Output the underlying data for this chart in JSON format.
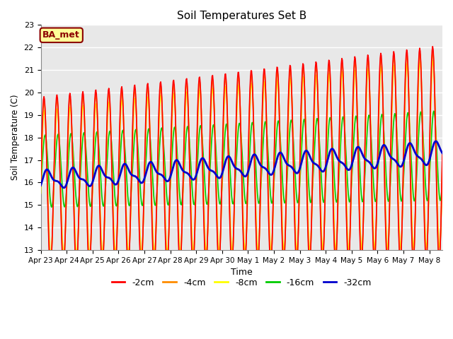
{
  "title": "Soil Temperatures Set B",
  "xlabel": "Time",
  "ylabel": "Soil Temperature (C)",
  "ylim": [
    13.0,
    23.0
  ],
  "yticks": [
    13.0,
    14.0,
    15.0,
    16.0,
    17.0,
    18.0,
    19.0,
    20.0,
    21.0,
    22.0,
    23.0
  ],
  "xtick_labels": [
    "Apr 23",
    "Apr 24",
    "Apr 25",
    "Apr 26",
    "Apr 27",
    "Apr 28",
    "Apr 29",
    "Apr 30",
    "May 1",
    "May 2",
    "May 3",
    "May 4",
    "May 5",
    "May 6",
    "May 7",
    "May 8"
  ],
  "annotation_text": "BA_met",
  "annotation_color": "#8B0000",
  "annotation_bg": "#FFFF99",
  "annotation_border": "#8B0000",
  "series_colors": [
    "#FF0000",
    "#FF8C00",
    "#FFFF00",
    "#00CC00",
    "#0000CD"
  ],
  "series_labels": [
    "-2cm",
    "-4cm",
    "-8cm",
    "-16cm",
    "-32cm"
  ],
  "line_width": 1.2,
  "bg_color": "#E8E8E8",
  "n_days": 15.5,
  "points_per_day": 48
}
